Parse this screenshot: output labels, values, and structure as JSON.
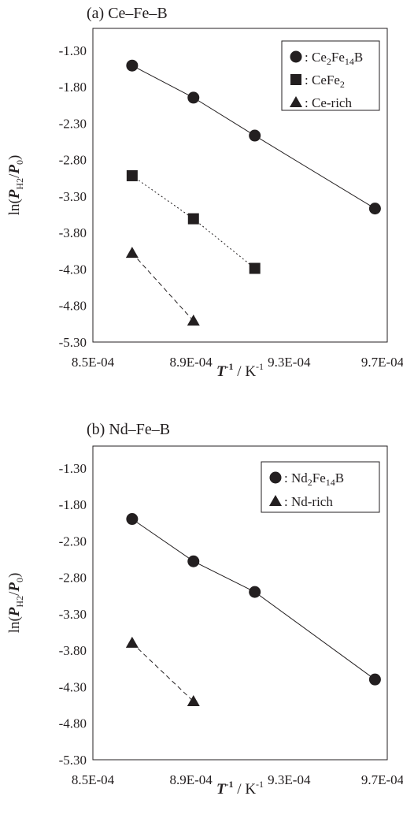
{
  "chart_data": [
    {
      "type": "scatter",
      "title": "(a) Ce–Fe–B",
      "xlabel": {
        "base": "T",
        "sup": "-1",
        "unit": " / K",
        "unit_sup": "-1"
      },
      "ylabel": {
        "pre": "ln(",
        "p1": "P",
        "sub": "H2",
        "slash": "/",
        "p2": "P",
        "sub2": "0",
        "post": ")"
      },
      "xlim": [
        0.00085,
        0.00097
      ],
      "ylim": [
        -5.3,
        -1.0
      ],
      "x_ticks": [
        0.00085,
        0.00089,
        0.00093,
        0.00097
      ],
      "x_tick_labels": [
        "8.5E-04",
        "8.9E-04",
        "9.3E-04",
        "9.7E-04"
      ],
      "y_ticks": [
        -1.3,
        -1.8,
        -2.3,
        -2.8,
        -3.3,
        -3.8,
        -4.3,
        -4.8,
        -5.3
      ],
      "y_tick_labels": [
        "-1.30",
        "-1.80",
        "-2.30",
        "-2.80",
        "-3.30",
        "-3.80",
        "-4.30",
        "-4.80",
        "-5.30"
      ],
      "legend_position": "top-right",
      "series": [
        {
          "legend_parts": [
            [
              "",
              "Ce"
            ],
            [
              "sub",
              "2"
            ],
            [
              "",
              "Fe"
            ],
            [
              "sub",
              "14"
            ],
            [
              "",
              "B"
            ]
          ],
          "marker": "circle",
          "line": "solid",
          "x": [
            0.000866,
            0.000891,
            0.000916,
            0.000965
          ],
          "y": [
            -1.51,
            -1.95,
            -2.47,
            -3.47
          ]
        },
        {
          "legend_parts": [
            [
              "",
              "CeFe"
            ],
            [
              "sub",
              "2"
            ]
          ],
          "marker": "square",
          "line": "dotted",
          "x": [
            0.000866,
            0.000891,
            0.000916
          ],
          "y": [
            -3.02,
            -3.61,
            -4.29
          ]
        },
        {
          "legend_parts": [
            [
              "",
              "Ce-rich"
            ]
          ],
          "marker": "triangle",
          "line": "dashed",
          "x": [
            0.000866,
            0.000891
          ],
          "y": [
            -4.08,
            -5.01
          ]
        }
      ]
    },
    {
      "type": "scatter",
      "title": "(b) Nd–Fe–B",
      "xlabel": {
        "base": "T",
        "sup": "-1",
        "unit": " / K",
        "unit_sup": "-1"
      },
      "ylabel": {
        "pre": "ln(",
        "p1": "P",
        "sub": "H2",
        "slash": "/",
        "p2": "P",
        "sub2": "0",
        "post": ")"
      },
      "xlim": [
        0.00085,
        0.00097
      ],
      "ylim": [
        -5.3,
        -1.0
      ],
      "x_ticks": [
        0.00085,
        0.00089,
        0.00093,
        0.00097
      ],
      "x_tick_labels": [
        "8.5E-04",
        "8.9E-04",
        "9.3E-04",
        "9.7E-04"
      ],
      "y_ticks": [
        -1.3,
        -1.8,
        -2.3,
        -2.8,
        -3.3,
        -3.8,
        -4.3,
        -4.8,
        -5.3
      ],
      "y_tick_labels": [
        "-1.30",
        "-1.80",
        "-2.30",
        "-2.80",
        "-3.30",
        "-3.80",
        "-4.30",
        "-4.80",
        "-5.30"
      ],
      "legend_position": "top-right",
      "series": [
        {
          "legend_parts": [
            [
              "",
              "Nd"
            ],
            [
              "sub",
              "2"
            ],
            [
              "",
              "Fe"
            ],
            [
              "sub",
              "14"
            ],
            [
              "",
              "B"
            ]
          ],
          "marker": "circle",
          "line": "solid",
          "x": [
            0.000866,
            0.000891,
            0.000916,
            0.000965
          ],
          "y": [
            -2.0,
            -2.58,
            -3.0,
            -4.2
          ]
        },
        {
          "legend_parts": [
            [
              "",
              "Nd-rich"
            ]
          ],
          "marker": "triangle",
          "line": "dashed",
          "x": [
            0.000866,
            0.000891
          ],
          "y": [
            -3.7,
            -4.5
          ]
        }
      ]
    }
  ]
}
